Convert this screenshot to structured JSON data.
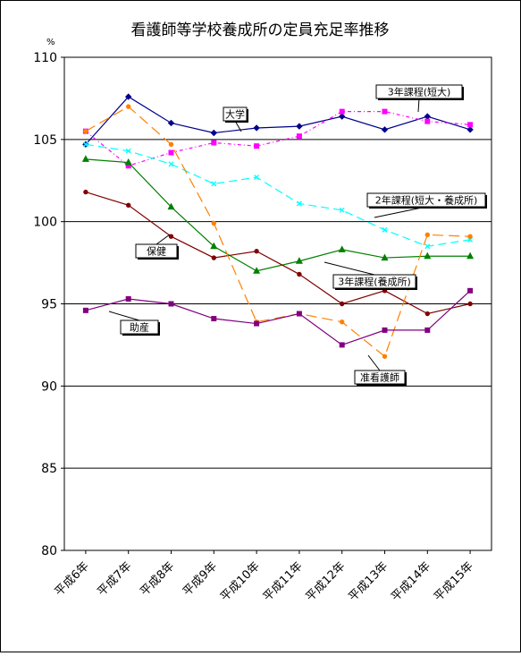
{
  "chart_data": {
    "type": "line",
    "title": "看護師等学校養成所の定員充足率推移",
    "y_unit": "%",
    "xlabel": "",
    "ylabel": "",
    "ylim": [
      80,
      110
    ],
    "y_ticks": [
      80,
      85,
      90,
      95,
      100,
      105,
      110
    ],
    "grid": true,
    "categories": [
      "平成6年",
      "平成7年",
      "平成8年",
      "平成9年",
      "平成10年",
      "平成11年",
      "平成12年",
      "平成13年",
      "平成14年",
      "平成15年"
    ],
    "series": [
      {
        "name": "大学",
        "color": "#00008b",
        "marker": "diamond",
        "dash": "",
        "values": [
          104.7,
          107.6,
          106.0,
          105.4,
          105.7,
          105.8,
          106.4,
          105.6,
          106.4,
          105.6
        ]
      },
      {
        "name": "3年課程(短大)",
        "color": "#ff00ff",
        "marker": "square",
        "dash": "4 3 1 3",
        "values": [
          105.5,
          103.4,
          104.2,
          104.8,
          104.6,
          105.2,
          106.7,
          106.7,
          106.1,
          105.9
        ]
      },
      {
        "name": "2年課程(短大・養成所)",
        "color": "#00ffff",
        "marker": "x",
        "dash": "9 5",
        "values": [
          104.7,
          104.3,
          103.5,
          102.3,
          102.7,
          101.1,
          100.7,
          99.5,
          98.5,
          98.9
        ]
      },
      {
        "name": "保健",
        "color": "#008000",
        "marker": "triangle",
        "dash": "",
        "values": [
          103.8,
          103.6,
          100.9,
          98.5,
          97.0,
          97.6,
          98.3,
          97.8,
          97.9,
          97.9
        ]
      },
      {
        "name": "3年課程(養成所)",
        "color": "#800000",
        "marker": "circle",
        "dash": "",
        "values": [
          101.8,
          101.0,
          99.1,
          97.8,
          98.2,
          96.8,
          95.0,
          95.8,
          94.4,
          95.0
        ]
      },
      {
        "name": "准看護師",
        "color": "#ff8000",
        "marker": "circle",
        "dash": "12 6",
        "values": [
          105.5,
          107.0,
          104.7,
          99.9,
          93.9,
          94.4,
          93.9,
          91.8,
          99.2,
          99.1
        ]
      },
      {
        "name": "助産",
        "color": "#800080",
        "marker": "square",
        "dash": "",
        "values": [
          94.6,
          95.3,
          95.0,
          94.1,
          93.8,
          94.4,
          92.5,
          93.4,
          93.4,
          95.8
        ]
      }
    ]
  }
}
